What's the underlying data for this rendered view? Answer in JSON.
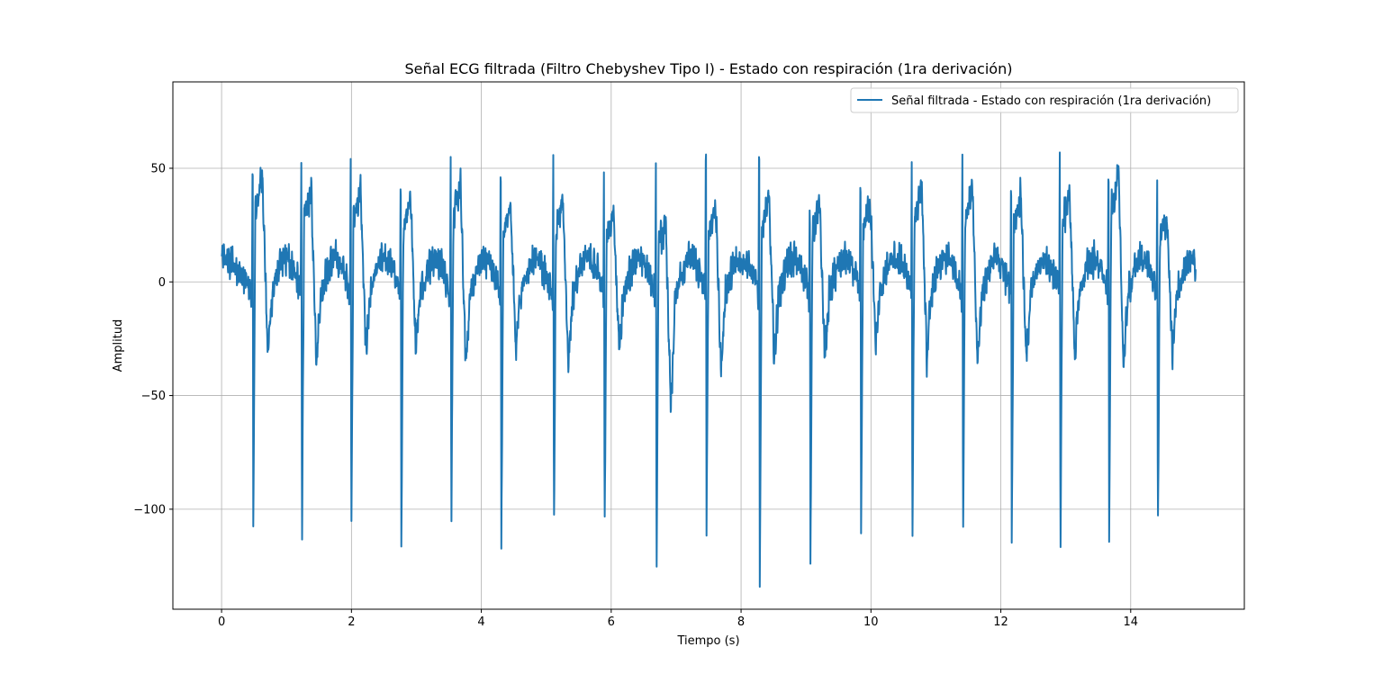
{
  "chart_data": {
    "type": "line",
    "title": "Señal ECG filtrada (Filtro Chebyshev Tipo I) - Estado con respiración (1ra derivación)",
    "xlabel": "Tiempo (s)",
    "ylabel": "Amplitud",
    "xlim": [
      -0.75,
      15.75
    ],
    "ylim": [
      -144,
      88
    ],
    "grid": true,
    "legend_placement": "top-right",
    "x_ticks": [
      0,
      2,
      4,
      6,
      8,
      10,
      12,
      14
    ],
    "x_tick_labels": [
      "0",
      "2",
      "4",
      "6",
      "8",
      "10",
      "12",
      "14"
    ],
    "y_ticks": [
      50,
      0,
      -50,
      -100
    ],
    "y_tick_labels": [
      "50",
      "0",
      "−50",
      "−100"
    ],
    "series": [
      {
        "name": "Señal filtrada - Estado con respiración (1ra derivación)",
        "color": "#1f77b4",
        "x_range": [
          0,
          15
        ],
        "beat_times": [
          0.47,
          1.22,
          1.98,
          2.75,
          3.52,
          4.29,
          5.1,
          5.88,
          6.68,
          7.45,
          8.27,
          9.05,
          9.83,
          10.62,
          11.4,
          12.15,
          12.9,
          13.65,
          14.4
        ],
        "r_peaks": [
          66,
          57,
          61,
          57,
          61,
          64,
          62,
          55,
          58,
          77,
          77,
          44,
          58,
          57,
          62,
          57,
          64,
          63,
          49
        ],
        "s_troughs": [
          -109,
          -115,
          -112,
          -123,
          -108,
          -119,
          -113,
          -115,
          -131,
          -112,
          -133,
          -124,
          -112,
          -117,
          -116,
          -115,
          -126,
          -114,
          -115
        ],
        "t_peaks": [
          56,
          47,
          48,
          45,
          49,
          39,
          40,
          36,
          29,
          40,
          43,
          39,
          42,
          50,
          49,
          46,
          45,
          56,
          33
        ],
        "t_troughs": [
          -40,
          -42,
          -37,
          -35,
          -46,
          -36,
          -45,
          -37,
          -70,
          -49,
          -42,
          -42,
          -35,
          -43,
          -45,
          -44,
          -40,
          -46,
          -42
        ]
      }
    ]
  }
}
